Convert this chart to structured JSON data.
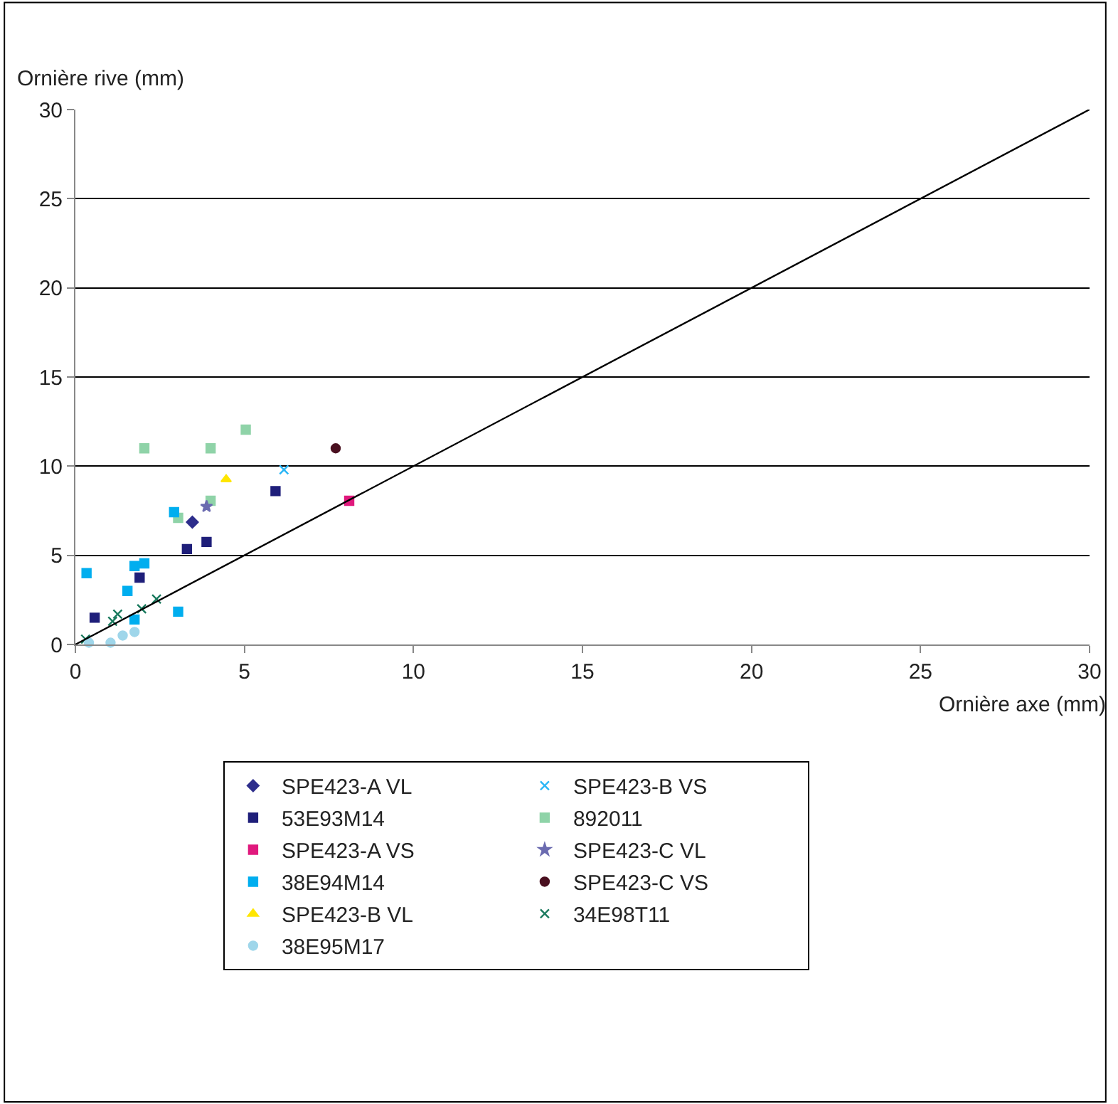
{
  "chart_data": {
    "type": "scatter",
    "xlabel": "Ornière axe (mm)",
    "ylabel": "Ornière rive (mm)",
    "xlim": [
      0,
      30
    ],
    "ylim": [
      0,
      30
    ],
    "xticks": [
      0,
      5,
      10,
      15,
      20,
      25,
      30
    ],
    "yticks": [
      0,
      5,
      10,
      15,
      20,
      25,
      30
    ],
    "grid": "y",
    "legend": "bottom",
    "series": [
      {
        "name": "SPE423-A VL",
        "color": "#2e2e8c",
        "marker": "diamond",
        "x": [
          3.46
        ],
        "values": [
          6.86
        ]
      },
      {
        "name": "SPE423-B VS",
        "color": "#29b6f6",
        "marker": "cross",
        "x": [
          6.17
        ],
        "values": [
          9.8
        ]
      },
      {
        "name": "53E93M14",
        "color": "#1f1f7a",
        "marker": "square",
        "x": [
          5.92,
          3.88,
          3.3,
          1.9,
          0.57
        ],
        "values": [
          8.6,
          5.75,
          5.35,
          3.75,
          1.5
        ]
      },
      {
        "name": "892011",
        "color": "#8fd3a8",
        "marker": "square",
        "x": [
          2.04,
          4.0,
          5.04,
          4.0,
          3.04
        ],
        "values": [
          11.0,
          11.0,
          12.05,
          8.06,
          7.1
        ]
      },
      {
        "name": "SPE423-A VS",
        "color": "#e0197d",
        "marker": "square",
        "x": [
          8.1
        ],
        "values": [
          8.06
        ]
      },
      {
        "name": "SPE423-C VL",
        "color": "#6b6bb0",
        "marker": "star",
        "x": [
          3.88
        ],
        "values": [
          7.74
        ]
      },
      {
        "name": "38E94M14",
        "color": "#00aeef",
        "marker": "square",
        "x": [
          2.92,
          2.04,
          0.33,
          1.75,
          1.54,
          3.04,
          1.75
        ],
        "values": [
          7.42,
          4.55,
          4.0,
          4.4,
          3.0,
          1.84,
          1.4
        ]
      },
      {
        "name": "SPE423-C VS",
        "color": "#4a1020",
        "marker": "circle",
        "x": [
          7.7
        ],
        "values": [
          11.0
        ]
      },
      {
        "name": "SPE423-B VL",
        "color": "#ffe600",
        "marker": "triangle",
        "x": [
          4.46
        ],
        "values": [
          9.26
        ]
      },
      {
        "name": "34E98T11",
        "color": "#1a7a5e",
        "marker": "cross",
        "x": [
          2.4,
          1.25,
          1.1,
          1.96,
          0.3
        ],
        "values": [
          2.55,
          1.7,
          1.3,
          2.0,
          0.3
        ]
      },
      {
        "name": "38E95M17",
        "color": "#9fd6ea",
        "marker": "circle",
        "x": [
          1.75,
          1.4,
          1.04,
          0.4
        ],
        "values": [
          0.7,
          0.5,
          0.1,
          0.1
        ]
      },
      {
        "type": "line",
        "color": "#000000",
        "marker": "none",
        "x": [
          0,
          30
        ],
        "values": [
          0,
          30
        ]
      }
    ]
  }
}
